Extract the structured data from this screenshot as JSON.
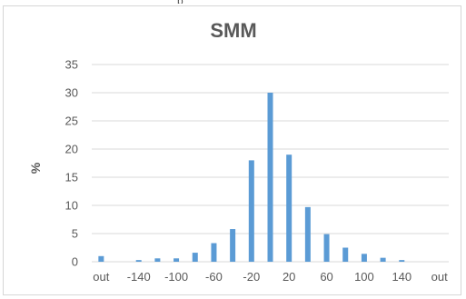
{
  "top_fragment": "p",
  "chart_data": {
    "type": "bar",
    "title": "SMM",
    "ylabel": "%",
    "xlabel": "",
    "ylim": [
      0,
      35
    ],
    "yticks": [
      "0",
      "5",
      "10",
      "15",
      "20",
      "25",
      "30",
      "35"
    ],
    "xtick_labels": [
      "out",
      "-140",
      "-100",
      "-60",
      "-20",
      "20",
      "60",
      "100",
      "140",
      "out"
    ],
    "categories": [
      "out",
      "-160",
      "-140",
      "-120",
      "-100",
      "-80",
      "-60",
      "-40",
      "-20",
      "0",
      "20",
      "40",
      "60",
      "80",
      "100",
      "120",
      "140",
      "160",
      "out"
    ],
    "values": [
      1.0,
      0.0,
      0.3,
      0.6,
      0.6,
      1.6,
      3.3,
      5.8,
      18.0,
      30.0,
      19.0,
      9.7,
      4.9,
      2.5,
      1.4,
      0.7,
      0.3,
      0.0,
      0.0
    ],
    "color": "#5b9bd5",
    "grid": true,
    "legend": "none"
  }
}
